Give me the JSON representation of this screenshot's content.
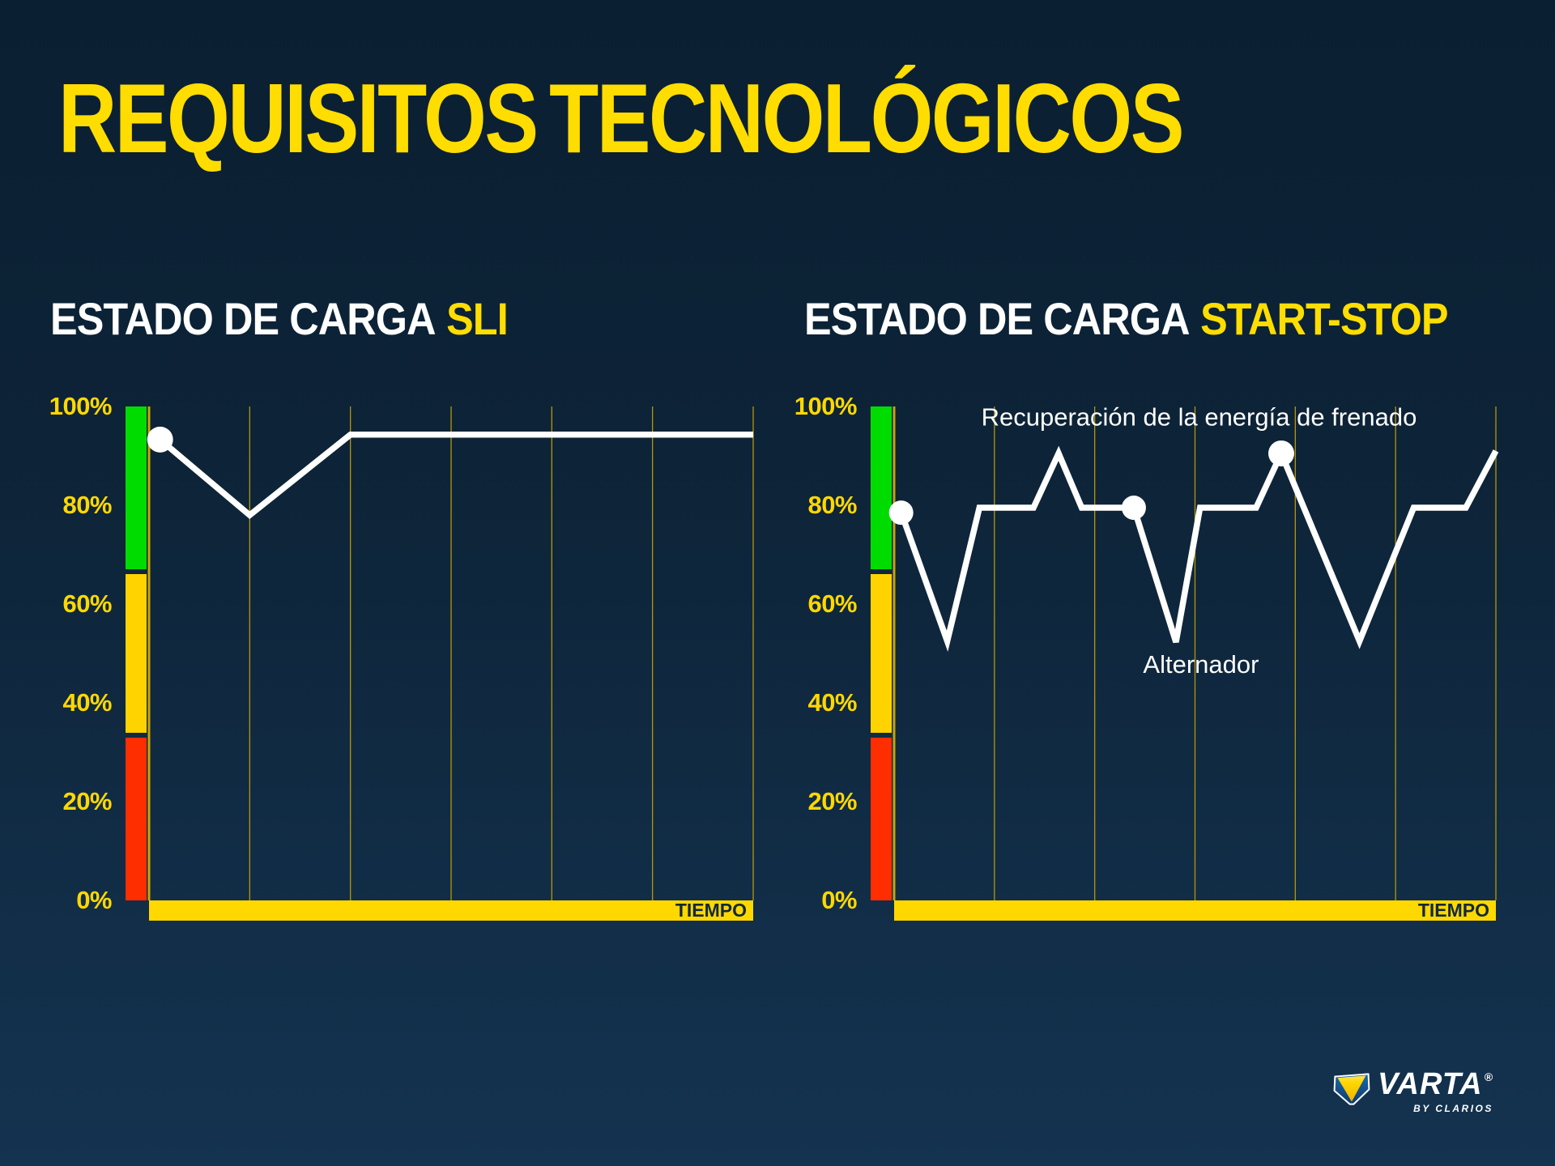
{
  "title": "REQUISITOS TECNOLÓGICOS",
  "colors": {
    "yellow": "#ffd800",
    "title_yellow": "#ffdd00",
    "grid": "#b5960a",
    "axis": "#c7a408",
    "line": "#ffffff",
    "green": "#00dc00",
    "zone_yellow": "#ffd300",
    "red": "#ff2e00",
    "navy_text": "#12293d"
  },
  "brand": {
    "name": "VARTA",
    "registered": "®",
    "tagline": "BY CLARIOS",
    "cube_icon": "varta-cube-icon"
  },
  "chart_data": [
    {
      "type": "line",
      "title": "ESTADO DE CARGA SLI",
      "title_white": "ESTADO DE CARGA",
      "title_accent": "SLI",
      "x_axis_label": "TIEMPO",
      "ylim": [
        0,
        100
      ],
      "y_ticks": [
        "100%",
        "80%",
        "60%",
        "40%",
        "20%",
        "0%"
      ],
      "x_gridline_count": 7,
      "grid": true,
      "soc_zones": [
        {
          "name": "green",
          "from": 100,
          "to": 67,
          "hex": "#00dc00"
        },
        {
          "name": "yellow",
          "from": 66,
          "to": 34,
          "hex": "#ffd300"
        },
        {
          "name": "red",
          "from": 33,
          "to": 0,
          "hex": "#ff2e00"
        }
      ],
      "series": [
        {
          "name": "estado de carga",
          "points": [
            [
              0.11,
              93.3
            ],
            [
              1.0,
              78.0
            ],
            [
              2.0,
              94.3
            ],
            [
              6.0,
              94.3
            ]
          ]
        }
      ],
      "markers": [
        {
          "point": 0,
          "r": 16
        }
      ],
      "annotations": []
    },
    {
      "type": "line",
      "title": "ESTADO DE CARGA START-STOP",
      "title_white": "ESTADO DE CARGA",
      "title_accent": "START-STOP",
      "x_axis_label": "TIEMPO",
      "ylim": [
        0,
        100
      ],
      "y_ticks": [
        "100%",
        "80%",
        "60%",
        "40%",
        "20%",
        "0%"
      ],
      "x_gridline_count": 7,
      "grid": true,
      "soc_zones": [
        {
          "name": "green",
          "from": 100,
          "to": 67,
          "hex": "#00dc00"
        },
        {
          "name": "yellow",
          "from": 66,
          "to": 34,
          "hex": "#ffd300"
        },
        {
          "name": "red",
          "from": 33,
          "to": 0,
          "hex": "#ff2e00"
        }
      ],
      "series": [
        {
          "name": "estado de carga",
          "points": [
            [
              0.07,
              78.5
            ],
            [
              0.53,
              52.5
            ],
            [
              0.85,
              79.5
            ],
            [
              1.39,
              79.5
            ],
            [
              1.64,
              90.5
            ],
            [
              1.87,
              79.5
            ],
            [
              2.39,
              79.5
            ],
            [
              2.81,
              52.3
            ],
            [
              3.05,
              79.5
            ],
            [
              3.61,
              79.5
            ],
            [
              3.86,
              90.5
            ],
            [
              4.64,
              52.5
            ],
            [
              5.18,
              79.5
            ],
            [
              5.7,
              79.5
            ],
            [
              6.0,
              91.0
            ]
          ]
        }
      ],
      "markers": [
        {
          "point": 0,
          "r": 15
        },
        {
          "point": 6,
          "r": 15
        },
        {
          "point": 10,
          "r": 16
        }
      ],
      "annotations": [
        {
          "text": "Recuperación de la energía de frenado",
          "u": 3.04,
          "pct": 97.5
        },
        {
          "text": "Alternador",
          "u": 3.06,
          "pct": 47.4
        }
      ]
    }
  ]
}
